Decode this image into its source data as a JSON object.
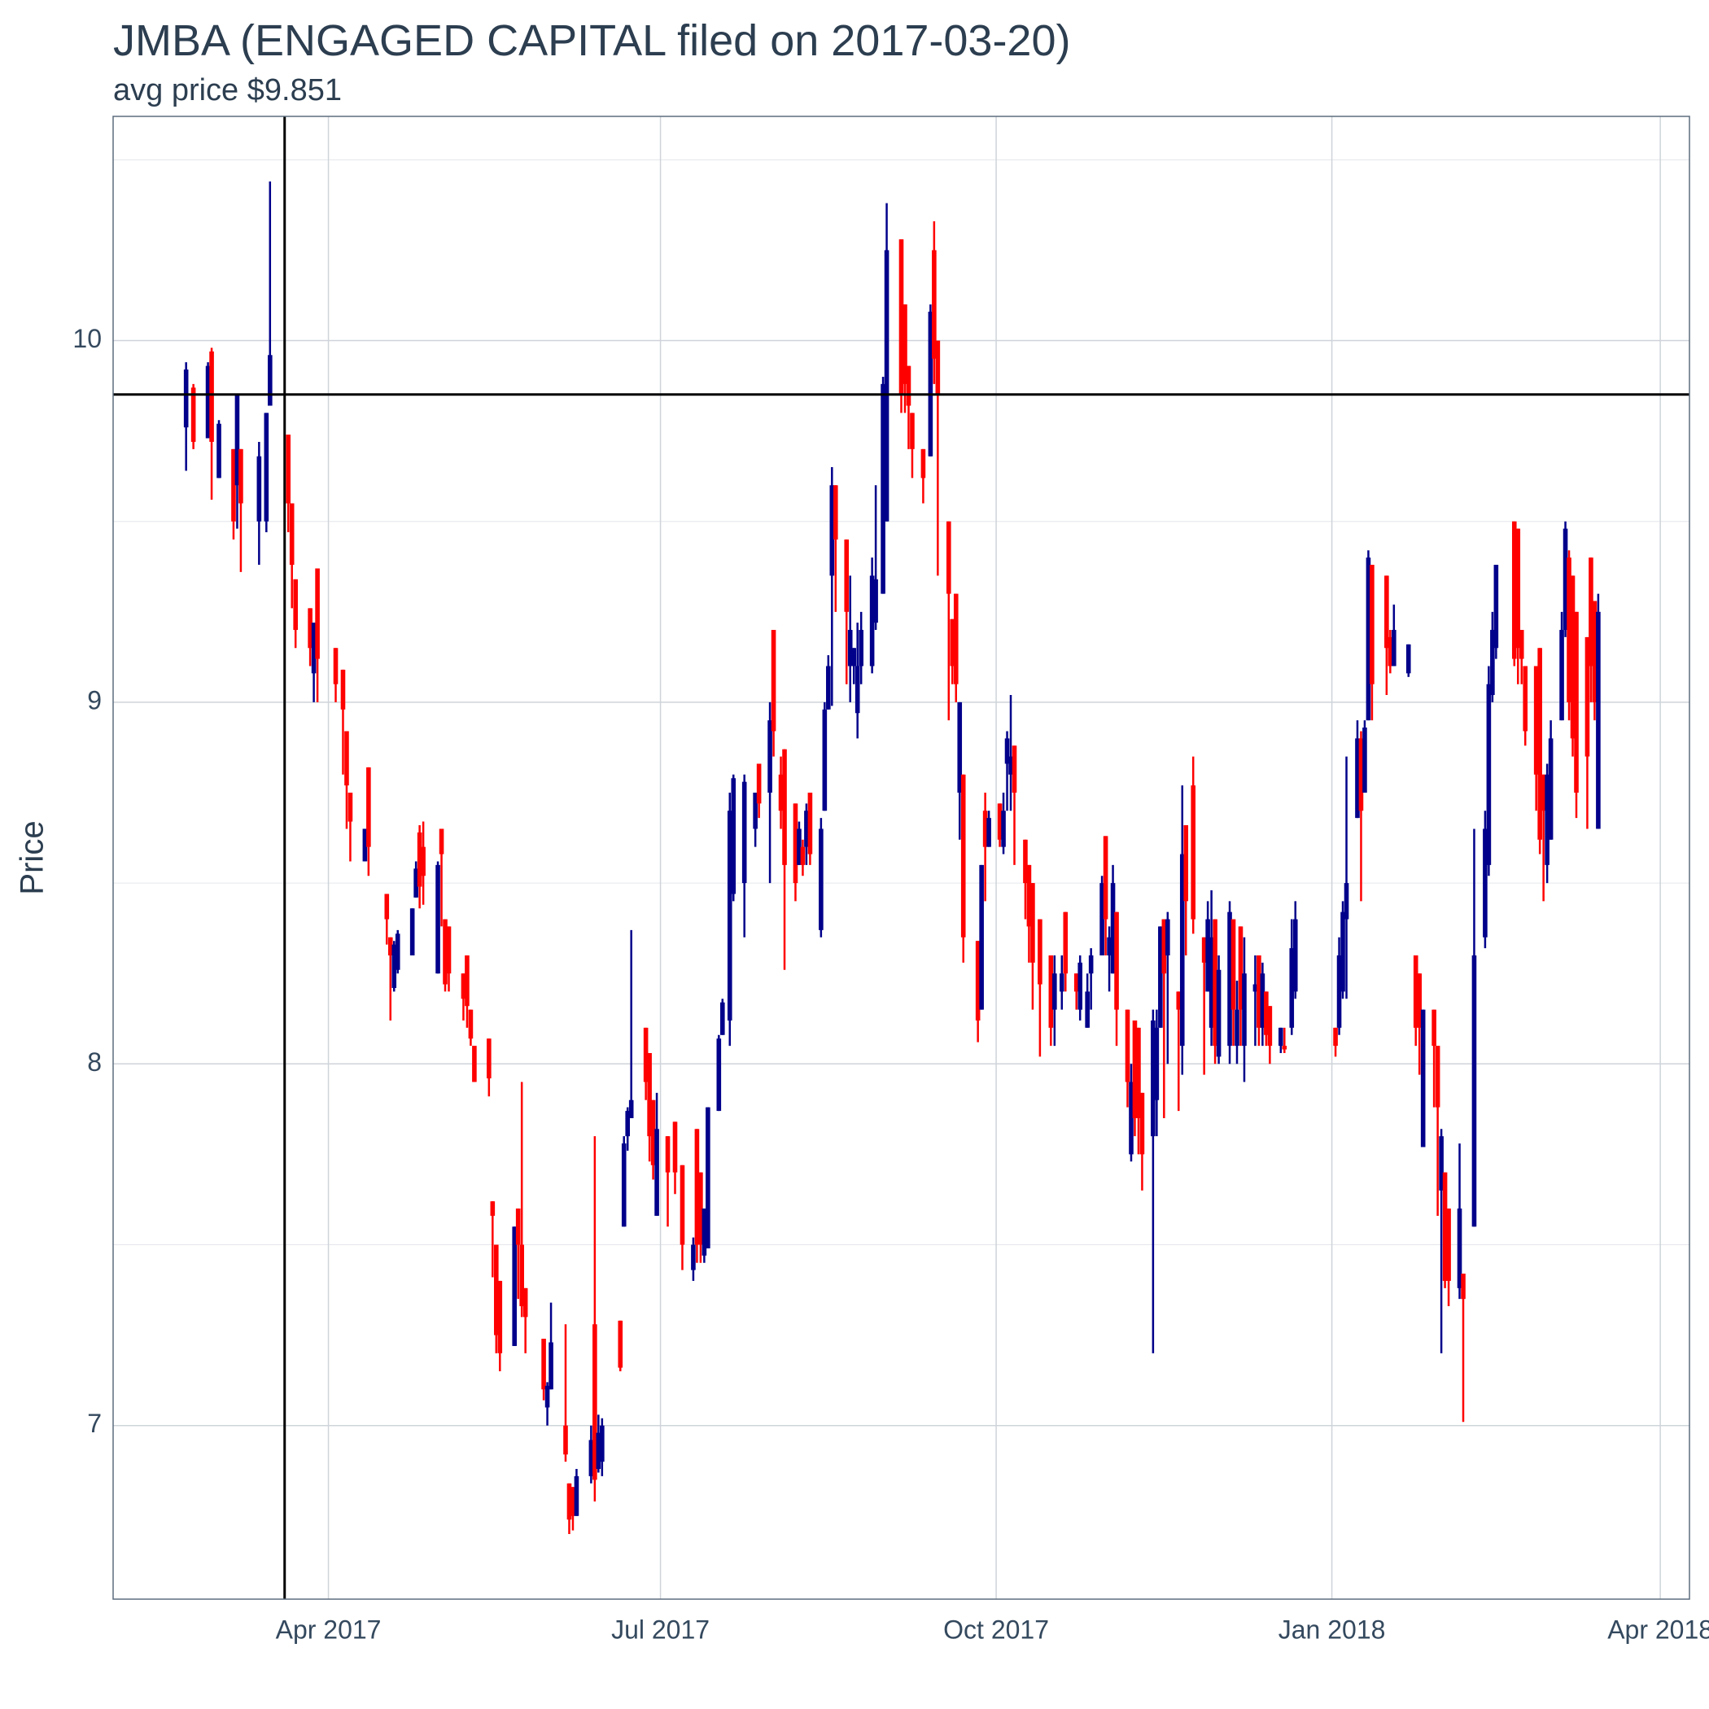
{
  "chart_data": {
    "type": "candlestick",
    "title": "JMBA (ENGAGED CAPITAL filed on 2017-03-20)",
    "subtitle": "avg price $9.851",
    "y_label": "Price",
    "up_color": "#00008b",
    "down_color": "#ff0000",
    "grid": true,
    "hline": 9.851,
    "vline": "2017-03-20",
    "xlim": [
      "2017-02-01",
      "2018-04-09"
    ],
    "xticks": [
      {
        "value": "2017-04-01",
        "label": "Apr 2017"
      },
      {
        "value": "2017-07-01",
        "label": "Jul 2017"
      },
      {
        "value": "2017-10-01",
        "label": "Oct 2017"
      },
      {
        "value": "2018-01-01",
        "label": "Jan 2018"
      },
      {
        "value": "2018-04-01",
        "label": "Apr 2018"
      }
    ],
    "ylim": [
      6.52,
      10.62
    ],
    "yticks": [
      7,
      8,
      9,
      10
    ],
    "yticks_minor": [
      7.5,
      8.5,
      9.5,
      10.5
    ],
    "x": [
      "2017-02-21",
      "2017-02-23",
      "2017-02-27",
      "2017-02-28",
      "2017-03-02",
      "2017-03-06",
      "2017-03-07",
      "2017-03-08",
      "2017-03-13",
      "2017-03-15",
      "2017-03-16",
      "2017-03-21",
      "2017-03-22",
      "2017-03-23",
      "2017-03-27",
      "2017-03-28",
      "2017-03-29",
      "2017-04-03",
      "2017-04-05",
      "2017-04-06",
      "2017-04-07",
      "2017-04-11",
      "2017-04-12",
      "2017-04-17",
      "2017-04-18",
      "2017-04-19",
      "2017-04-20",
      "2017-04-24",
      "2017-04-25",
      "2017-04-26",
      "2017-04-27",
      "2017-05-01",
      "2017-05-02",
      "2017-05-03",
      "2017-05-04",
      "2017-05-08",
      "2017-05-09",
      "2017-05-10",
      "2017-05-11",
      "2017-05-15",
      "2017-05-16",
      "2017-05-17",
      "2017-05-18",
      "2017-05-22",
      "2017-05-23",
      "2017-05-24",
      "2017-05-25",
      "2017-05-30",
      "2017-05-31",
      "2017-06-01",
      "2017-06-05",
      "2017-06-06",
      "2017-06-07",
      "2017-06-08",
      "2017-06-12",
      "2017-06-13",
      "2017-06-14",
      "2017-06-15",
      "2017-06-20",
      "2017-06-21",
      "2017-06-22",
      "2017-06-23",
      "2017-06-27",
      "2017-06-28",
      "2017-06-29",
      "2017-06-30",
      "2017-07-03",
      "2017-07-05",
      "2017-07-07",
      "2017-07-10",
      "2017-07-11",
      "2017-07-12",
      "2017-07-13",
      "2017-07-14",
      "2017-07-17",
      "2017-07-18",
      "2017-07-20",
      "2017-07-21",
      "2017-07-24",
      "2017-07-27",
      "2017-07-28",
      "2017-07-31",
      "2017-08-01",
      "2017-08-03",
      "2017-08-04",
      "2017-08-07",
      "2017-08-08",
      "2017-08-09",
      "2017-08-10",
      "2017-08-11",
      "2017-08-14",
      "2017-08-15",
      "2017-08-16",
      "2017-08-17",
      "2017-08-18",
      "2017-08-21",
      "2017-08-22",
      "2017-08-23",
      "2017-08-24",
      "2017-08-25",
      "2017-08-28",
      "2017-08-29",
      "2017-08-31",
      "2017-09-01",
      "2017-09-05",
      "2017-09-06",
      "2017-09-07",
      "2017-09-08",
      "2017-09-11",
      "2017-09-13",
      "2017-09-14",
      "2017-09-15",
      "2017-09-18",
      "2017-09-19",
      "2017-09-20",
      "2017-09-21",
      "2017-09-22",
      "2017-09-26",
      "2017-09-27",
      "2017-09-28",
      "2017-09-29",
      "2017-10-02",
      "2017-10-03",
      "2017-10-04",
      "2017-10-05",
      "2017-10-06",
      "2017-10-09",
      "2017-10-10",
      "2017-10-11",
      "2017-10-13",
      "2017-10-16",
      "2017-10-17",
      "2017-10-19",
      "2017-10-20",
      "2017-10-23",
      "2017-10-24",
      "2017-10-26",
      "2017-10-27",
      "2017-10-30",
      "2017-10-31",
      "2017-11-01",
      "2017-11-02",
      "2017-11-03",
      "2017-11-06",
      "2017-11-07",
      "2017-11-08",
      "2017-11-09",
      "2017-11-10",
      "2017-11-13",
      "2017-11-14",
      "2017-11-15",
      "2017-11-16",
      "2017-11-17",
      "2017-11-20",
      "2017-11-21",
      "2017-11-22",
      "2017-11-24",
      "2017-11-27",
      "2017-11-28",
      "2017-11-29",
      "2017-11-30",
      "2017-12-01",
      "2017-12-04",
      "2017-12-05",
      "2017-12-06",
      "2017-12-07",
      "2017-12-08",
      "2017-12-11",
      "2017-12-12",
      "2017-12-13",
      "2017-12-14",
      "2017-12-15",
      "2017-12-18",
      "2017-12-19",
      "2017-12-21",
      "2017-12-22",
      "2018-01-02",
      "2018-01-03",
      "2018-01-04",
      "2018-01-05",
      "2018-01-08",
      "2018-01-09",
      "2018-01-10",
      "2018-01-11",
      "2018-01-12",
      "2018-01-16",
      "2018-01-17",
      "2018-01-18",
      "2018-01-22",
      "2018-01-24",
      "2018-01-25",
      "2018-01-26",
      "2018-01-29",
      "2018-01-30",
      "2018-01-31",
      "2018-02-01",
      "2018-02-02",
      "2018-02-05",
      "2018-02-06",
      "2018-02-09",
      "2018-02-12",
      "2018-02-13",
      "2018-02-14",
      "2018-02-15",
      "2018-02-20",
      "2018-02-21",
      "2018-02-22",
      "2018-02-23",
      "2018-02-26",
      "2018-02-27",
      "2018-02-28",
      "2018-03-01",
      "2018-03-02",
      "2018-03-05",
      "2018-03-06",
      "2018-03-07",
      "2018-03-08",
      "2018-03-09",
      "2018-03-12",
      "2018-03-13",
      "2018-03-14",
      "2018-03-15"
    ],
    "open": [
      9.76,
      9.87,
      9.73,
      9.97,
      9.62,
      9.7,
      9.6,
      9.7,
      9.5,
      9.5,
      9.82,
      9.74,
      9.55,
      9.34,
      9.26,
      9.08,
      9.37,
      9.15,
      9.09,
      8.92,
      8.75,
      8.56,
      8.82,
      8.47,
      8.35,
      8.21,
      8.26,
      8.3,
      8.46,
      8.64,
      8.6,
      8.25,
      8.65,
      8.4,
      8.38,
      8.25,
      8.3,
      8.15,
      8.05,
      8.07,
      7.62,
      7.5,
      7.4,
      7.22,
      7.6,
      7.5,
      7.38,
      7.24,
      7.05,
      7.1,
      7.0,
      6.84,
      6.83,
      6.75,
      6.86,
      7.28,
      6.88,
      6.9,
      7.29,
      7.55,
      7.8,
      7.85,
      8.1,
      8.03,
      7.9,
      7.58,
      7.8,
      7.84,
      7.72,
      7.43,
      7.82,
      7.7,
      7.47,
      7.49,
      7.87,
      8.08,
      8.12,
      8.47,
      8.5,
      8.65,
      8.83,
      8.75,
      9.2,
      8.8,
      8.87,
      8.72,
      8.55,
      8.6,
      8.6,
      8.75,
      8.37,
      8.7,
      8.98,
      9.35,
      9.6,
      9.45,
      9.1,
      9.1,
      8.97,
      9.1,
      9.1,
      9.22,
      9.3,
      9.5,
      10.28,
      10.1,
      9.93,
      9.8,
      9.7,
      9.68,
      10.25,
      10.0,
      9.5,
      9.23,
      9.3,
      8.75,
      8.8,
      8.34,
      8.15,
      8.7,
      8.6,
      8.72,
      8.6,
      8.83,
      8.8,
      8.88,
      8.62,
      8.55,
      8.5,
      8.4,
      8.3,
      8.15,
      8.2,
      8.42,
      8.25,
      8.15,
      8.1,
      8.25,
      8.3,
      8.63,
      8.3,
      8.25,
      8.42,
      8.15,
      7.75,
      8.12,
      8.1,
      7.92,
      7.8,
      7.9,
      8.1,
      8.4,
      8.3,
      8.2,
      8.05,
      8.66,
      8.77,
      8.35,
      8.2,
      8.1,
      8.4,
      8.02,
      8.05,
      8.4,
      8.05,
      8.38,
      8.05,
      8.2,
      8.3,
      8.1,
      8.2,
      8.16,
      8.05,
      8.05,
      8.1,
      8.2,
      8.1,
      8.1,
      8.2,
      8.4,
      8.68,
      8.9,
      8.75,
      8.95,
      9.38,
      9.35,
      9.18,
      9.1,
      9.08,
      8.3,
      8.25,
      7.77,
      8.15,
      8.05,
      7.65,
      7.7,
      7.6,
      7.38,
      7.42,
      7.55,
      8.35,
      8.55,
      9.02,
      9.15,
      9.5,
      9.48,
      9.2,
      9.1,
      9.1,
      9.15,
      8.8,
      8.55,
      8.62,
      8.95,
      9.2,
      9.4,
      9.35,
      9.25,
      9.18,
      9.4,
      9.28,
      8.65
    ],
    "high": [
      9.94,
      9.88,
      9.94,
      9.98,
      9.78,
      9.7,
      9.85,
      9.7,
      9.72,
      9.8,
      10.44,
      9.74,
      9.55,
      9.34,
      9.26,
      9.22,
      9.37,
      9.15,
      9.09,
      8.92,
      8.75,
      8.65,
      8.82,
      8.47,
      8.35,
      8.34,
      8.37,
      8.43,
      8.56,
      8.66,
      8.67,
      8.56,
      8.65,
      8.4,
      8.38,
      8.25,
      8.3,
      8.15,
      8.05,
      8.07,
      7.62,
      7.5,
      7.4,
      7.55,
      7.6,
      7.95,
      7.38,
      7.24,
      7.12,
      7.34,
      7.28,
      6.84,
      6.83,
      6.88,
      7.0,
      7.8,
      7.03,
      7.02,
      7.29,
      7.8,
      7.88,
      8.37,
      8.1,
      8.03,
      7.9,
      7.92,
      7.8,
      7.84,
      7.72,
      7.52,
      7.82,
      7.7,
      7.6,
      7.88,
      8.08,
      8.18,
      8.75,
      8.8,
      8.8,
      8.75,
      8.83,
      9.0,
      9.2,
      8.85,
      8.87,
      8.72,
      8.67,
      8.62,
      8.72,
      8.75,
      8.68,
      9.0,
      9.13,
      9.65,
      9.6,
      9.45,
      9.35,
      9.15,
      9.22,
      9.25,
      9.4,
      9.6,
      9.9,
      10.38,
      10.28,
      10.1,
      9.93,
      9.8,
      9.7,
      10.1,
      10.33,
      10.0,
      9.5,
      9.23,
      9.3,
      9.0,
      8.8,
      8.34,
      8.55,
      8.75,
      8.7,
      8.72,
      8.75,
      8.92,
      9.02,
      8.88,
      8.62,
      8.55,
      8.5,
      8.4,
      8.3,
      8.3,
      8.3,
      8.42,
      8.25,
      8.3,
      8.25,
      8.32,
      8.52,
      8.63,
      8.38,
      8.55,
      8.42,
      8.15,
      8.0,
      8.12,
      8.1,
      7.92,
      8.15,
      8.15,
      8.38,
      8.4,
      8.42,
      8.2,
      8.77,
      8.66,
      8.85,
      8.35,
      8.45,
      8.48,
      8.4,
      8.3,
      8.45,
      8.4,
      8.23,
      8.38,
      8.35,
      8.3,
      8.3,
      8.28,
      8.2,
      8.16,
      8.1,
      8.1,
      8.4,
      8.45,
      8.1,
      8.35,
      8.45,
      8.85,
      8.95,
      8.92,
      8.95,
      9.42,
      9.38,
      9.35,
      9.2,
      9.27,
      9.16,
      8.3,
      8.25,
      8.15,
      8.15,
      8.05,
      7.82,
      7.7,
      7.6,
      7.78,
      7.42,
      8.65,
      8.7,
      9.1,
      9.25,
      9.38,
      9.5,
      9.48,
      9.2,
      9.1,
      9.1,
      9.15,
      8.8,
      8.83,
      8.95,
      9.25,
      9.5,
      9.42,
      9.35,
      9.25,
      9.18,
      9.4,
      9.28,
      9.3
    ],
    "low": [
      9.64,
      9.7,
      9.73,
      9.56,
      9.62,
      9.45,
      9.48,
      9.36,
      9.38,
      9.47,
      9.82,
      9.47,
      9.26,
      9.15,
      9.1,
      9.0,
      9.0,
      9.0,
      8.8,
      8.65,
      8.56,
      8.56,
      8.52,
      8.33,
      8.12,
      8.2,
      8.25,
      8.3,
      8.46,
      8.43,
      8.44,
      8.25,
      8.38,
      8.2,
      8.2,
      8.12,
      8.1,
      8.05,
      7.95,
      7.91,
      7.41,
      7.2,
      7.15,
      7.22,
      7.35,
      7.3,
      7.2,
      7.07,
      7.0,
      7.1,
      6.9,
      6.7,
      6.71,
      6.75,
      6.84,
      6.79,
      6.87,
      6.86,
      7.15,
      7.55,
      7.76,
      7.85,
      7.9,
      7.73,
      7.68,
      7.58,
      7.55,
      7.64,
      7.43,
      7.4,
      7.45,
      7.45,
      7.45,
      7.49,
      7.87,
      8.08,
      8.05,
      8.45,
      8.35,
      8.6,
      8.68,
      8.5,
      8.85,
      8.65,
      8.26,
      8.45,
      8.55,
      8.52,
      8.55,
      8.55,
      8.35,
      8.7,
      8.98,
      8.99,
      9.25,
      9.05,
      9.0,
      9.05,
      8.9,
      9.05,
      9.08,
      9.2,
      9.3,
      9.5,
      9.8,
      9.8,
      9.7,
      9.62,
      9.55,
      9.68,
      9.88,
      9.35,
      8.95,
      9.05,
      9.0,
      8.62,
      8.28,
      8.06,
      8.15,
      8.45,
      8.6,
      8.6,
      8.58,
      8.7,
      8.7,
      8.55,
      8.4,
      8.28,
      8.15,
      8.02,
      8.05,
      8.05,
      8.15,
      8.2,
      8.15,
      8.12,
      8.1,
      8.15,
      8.3,
      8.3,
      8.2,
      8.25,
      8.05,
      7.88,
      7.73,
      7.8,
      7.75,
      7.65,
      7.2,
      7.8,
      8.1,
      7.85,
      8.0,
      7.87,
      7.97,
      8.3,
      8.36,
      7.97,
      8.2,
      8.05,
      8.0,
      8.0,
      8.0,
      8.05,
      8.0,
      8.05,
      7.95,
      8.05,
      8.05,
      8.05,
      8.05,
      8.0,
      8.03,
      8.03,
      8.08,
      8.18,
      8.02,
      8.08,
      8.18,
      8.18,
      8.68,
      8.45,
      8.75,
      8.95,
      8.95,
      9.02,
      9.08,
      9.1,
      9.07,
      8.05,
      7.97,
      7.77,
      7.88,
      7.58,
      7.2,
      7.38,
      7.33,
      7.35,
      7.01,
      7.55,
      8.32,
      8.52,
      9.0,
      9.12,
      9.1,
      9.05,
      9.05,
      8.88,
      8.7,
      8.58,
      8.45,
      8.5,
      8.62,
      8.95,
      9.18,
      8.95,
      8.85,
      8.68,
      8.65,
      9.0,
      8.95,
      8.65
    ],
    "close": [
      9.92,
      9.72,
      9.93,
      9.72,
      9.77,
      9.5,
      9.85,
      9.55,
      9.68,
      9.8,
      9.96,
      9.55,
      9.38,
      9.2,
      9.15,
      9.22,
      9.12,
      9.05,
      8.98,
      8.77,
      8.67,
      8.65,
      8.6,
      8.4,
      8.3,
      8.33,
      8.36,
      8.43,
      8.54,
      8.49,
      8.52,
      8.55,
      8.58,
      8.22,
      8.25,
      8.18,
      8.16,
      8.07,
      7.95,
      7.96,
      7.58,
      7.25,
      7.2,
      7.55,
      7.5,
      7.33,
      7.3,
      7.1,
      7.11,
      7.23,
      6.92,
      6.74,
      6.75,
      6.86,
      6.96,
      6.85,
      6.98,
      7.0,
      7.16,
      7.78,
      7.87,
      7.9,
      7.95,
      7.8,
      7.72,
      7.82,
      7.7,
      7.7,
      7.5,
      7.5,
      7.5,
      7.5,
      7.6,
      7.88,
      8.07,
      8.17,
      8.7,
      8.79,
      8.78,
      8.75,
      8.72,
      8.95,
      8.92,
      8.7,
      8.55,
      8.5,
      8.65,
      8.55,
      8.7,
      8.58,
      8.65,
      8.98,
      9.1,
      9.6,
      9.45,
      9.25,
      9.2,
      9.15,
      9.1,
      9.2,
      9.35,
      9.34,
      9.88,
      10.25,
      9.85,
      9.88,
      9.82,
      9.7,
      9.62,
      10.08,
      9.95,
      9.85,
      9.3,
      9.1,
      9.05,
      9.0,
      8.35,
      8.12,
      8.55,
      8.6,
      8.68,
      8.62,
      8.7,
      8.9,
      8.85,
      8.75,
      8.5,
      8.38,
      8.28,
      8.22,
      8.1,
      8.25,
      8.25,
      8.25,
      8.2,
      8.28,
      8.2,
      8.3,
      8.5,
      8.4,
      8.35,
      8.5,
      8.15,
      7.95,
      7.95,
      7.85,
      7.85,
      7.75,
      8.12,
      8.1,
      8.38,
      8.25,
      8.4,
      8.15,
      8.58,
      8.45,
      8.4,
      8.28,
      8.4,
      8.35,
      8.05,
      8.26,
      8.42,
      8.15,
      8.15,
      8.15,
      8.25,
      8.22,
      8.1,
      8.25,
      8.08,
      8.05,
      8.1,
      8.04,
      8.32,
      8.4,
      8.05,
      8.3,
      8.42,
      8.5,
      8.9,
      8.7,
      8.93,
      9.4,
      9.05,
      9.15,
      9.1,
      9.2,
      9.16,
      8.1,
      8.1,
      8.15,
      8.05,
      7.88,
      7.8,
      7.4,
      7.4,
      7.6,
      7.35,
      8.3,
      8.65,
      9.05,
      9.2,
      9.38,
      9.12,
      9.15,
      9.12,
      8.92,
      8.8,
      8.62,
      8.7,
      8.8,
      8.9,
      9.2,
      9.48,
      9.0,
      8.9,
      8.75,
      8.85,
      9.1,
      9.0,
      9.25
    ]
  }
}
